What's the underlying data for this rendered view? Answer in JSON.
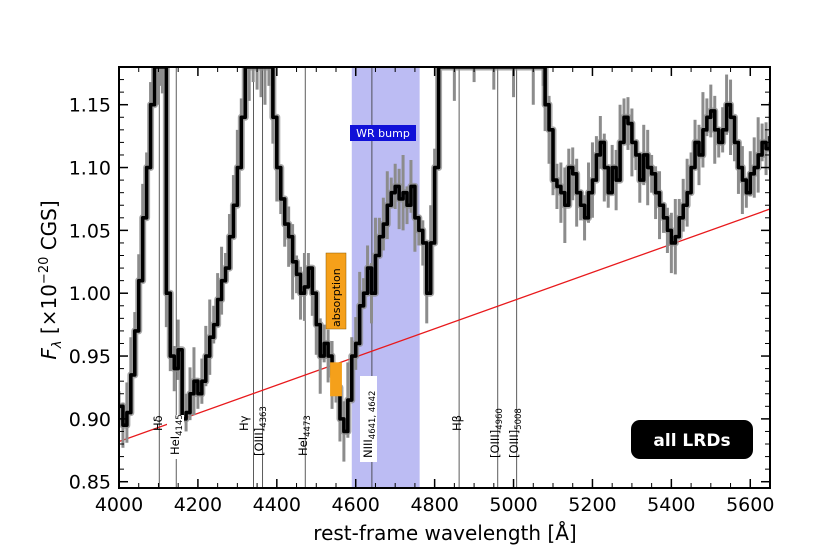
{
  "chart_data": {
    "type": "line",
    "title": "",
    "xlabel": "rest-frame wavelength [Å]",
    "ylabel": "F_λ [×10^−20 CGS]",
    "xlim": [
      4000,
      5650
    ],
    "ylim": [
      0.845,
      1.18
    ],
    "xticks": [
      4000,
      4200,
      4400,
      4600,
      4800,
      5000,
      5200,
      5400,
      5600
    ],
    "yticks": [
      0.85,
      0.9,
      0.95,
      1.0,
      1.05,
      1.1,
      1.15
    ],
    "xtick_labels": [
      "4000",
      "4200",
      "4400",
      "4600",
      "4800",
      "5000",
      "5200",
      "5400",
      "5600"
    ],
    "ytick_labels": [
      "0.85",
      "0.90",
      "0.95",
      "1.00",
      "1.05",
      "1.10",
      "1.15"
    ],
    "grid": false,
    "series": [
      {
        "role": "spectrum",
        "color": "#000000",
        "error_color": "#888888",
        "x": [
          4000,
          4010,
          4020,
          4030,
          4040,
          4050,
          4060,
          4070,
          4080,
          4090,
          4100,
          4105,
          4110,
          4120,
          4130,
          4140,
          4150,
          4160,
          4170,
          4180,
          4190,
          4200,
          4210,
          4220,
          4230,
          4240,
          4250,
          4260,
          4270,
          4280,
          4290,
          4300,
          4310,
          4320,
          4330,
          4340,
          4350,
          4360,
          4370,
          4380,
          4390,
          4400,
          4410,
          4420,
          4430,
          4440,
          4450,
          4460,
          4470,
          4480,
          4490,
          4500,
          4510,
          4520,
          4530,
          4540,
          4550,
          4560,
          4570,
          4580,
          4590,
          4600,
          4610,
          4620,
          4630,
          4640,
          4650,
          4660,
          4670,
          4680,
          4690,
          4700,
          4710,
          4720,
          4730,
          4740,
          4750,
          4760,
          4770,
          4780,
          4790,
          4800,
          4810,
          4850,
          4900,
          4950,
          5000,
          5050,
          5075,
          5080,
          5090,
          5100,
          5110,
          5120,
          5130,
          5140,
          5150,
          5160,
          5170,
          5180,
          5190,
          5200,
          5210,
          5220,
          5230,
          5240,
          5250,
          5260,
          5270,
          5280,
          5290,
          5300,
          5310,
          5320,
          5330,
          5340,
          5350,
          5360,
          5370,
          5380,
          5390,
          5400,
          5410,
          5420,
          5430,
          5440,
          5450,
          5460,
          5470,
          5480,
          5490,
          5500,
          5510,
          5520,
          5530,
          5540,
          5550,
          5560,
          5570,
          5580,
          5590,
          5600,
          5610,
          5620,
          5630,
          5640,
          5650
        ],
        "y": [
          0.91,
          0.895,
          0.905,
          0.935,
          0.97,
          1.01,
          1.06,
          1.1,
          1.15,
          1.18,
          1.18,
          1.18,
          1.18,
          1.0,
          0.95,
          0.94,
          0.955,
          0.9,
          0.905,
          0.92,
          0.93,
          0.92,
          0.93,
          0.95,
          0.965,
          0.975,
          0.995,
          1.01,
          1.02,
          1.045,
          1.07,
          1.1,
          1.14,
          1.18,
          1.18,
          1.18,
          1.18,
          1.18,
          1.18,
          1.18,
          1.14,
          1.1,
          1.075,
          1.055,
          1.045,
          1.025,
          1.015,
          1.0,
          1.005,
          1.02,
          1.0,
          0.975,
          0.95,
          0.96,
          0.95,
          0.935,
          0.925,
          0.9,
          0.89,
          0.915,
          0.95,
          0.96,
          0.99,
          1.0,
          1.02,
          1.0,
          1.03,
          1.045,
          1.055,
          1.07,
          1.08,
          1.085,
          1.075,
          1.08,
          1.07,
          1.085,
          1.06,
          1.05,
          1.04,
          1.0,
          1.04,
          1.1,
          1.18,
          1.18,
          1.18,
          1.18,
          1.18,
          1.18,
          1.18,
          1.15,
          1.13,
          1.09,
          1.085,
          1.08,
          1.07,
          1.1,
          1.095,
          1.08,
          1.07,
          1.06,
          1.08,
          1.09,
          1.11,
          1.12,
          1.1,
          1.08,
          1.1,
          1.09,
          1.12,
          1.14,
          1.135,
          1.12,
          1.11,
          1.09,
          1.11,
          1.1,
          1.095,
          1.08,
          1.07,
          1.06,
          1.05,
          1.04,
          1.045,
          1.06,
          1.07,
          1.08,
          1.1,
          1.12,
          1.11,
          1.13,
          1.14,
          1.145,
          1.13,
          1.12,
          1.13,
          1.15,
          1.14,
          1.12,
          1.1,
          1.09,
          1.08,
          1.095,
          1.1,
          1.11,
          1.12,
          1.115,
          1.125
        ]
      },
      {
        "role": "continuum",
        "color": "#e8191c",
        "x": [
          4000,
          5650
        ],
        "y": [
          0.882,
          1.067
        ]
      }
    ],
    "emission_lines": [
      {
        "label": "Hδ",
        "wavelength": 4102
      },
      {
        "label": "HeI4145",
        "wavelength": 4145
      },
      {
        "label": "Hγ",
        "wavelength": 4341
      },
      {
        "label": "[OIII]4363",
        "wavelength": 4364
      },
      {
        "label": "HeI4473",
        "wavelength": 4472
      },
      {
        "label": "NIII4641,4642",
        "wavelength": 4641
      },
      {
        "label": "Hβ",
        "wavelength": 4862
      },
      {
        "label": "[OIII]4960",
        "wavelength": 4960
      },
      {
        "label": "[OIII]5008",
        "wavelength": 5008
      }
    ],
    "line_label_text": {
      "hdelta": "Hδ",
      "hei4145_main": "HeI",
      "hei4145_sub": "4145",
      "hgamma": "Hγ",
      "oiii4363_main": "[OIII]",
      "oiii4363_sub": "4363",
      "hei4473_main": "HeI",
      "hei4473_sub": "4473",
      "niii_main": "NIII",
      "niii_sub": "4641, 4642",
      "hbeta": "Hβ",
      "oiii4960_main": "[OIII]",
      "oiii4960_sub": "4960",
      "oiii5008_main": "[OIII]",
      "oiii5008_sub": "5008"
    },
    "regions": [
      {
        "label": "WR bump",
        "x_range": [
          4590,
          4762
        ],
        "color": "#b8b8f2",
        "label_bg": "#1010d8"
      },
      {
        "label": "absorption",
        "x_range": [
          4535,
          4565
        ],
        "y_range": [
          0.918,
          0.945
        ],
        "color": "#f5a01a",
        "label_bg": "#f5a01a"
      }
    ],
    "annotation": {
      "label": "all LRDs",
      "placement": "bottom-right"
    },
    "legend": "none"
  }
}
